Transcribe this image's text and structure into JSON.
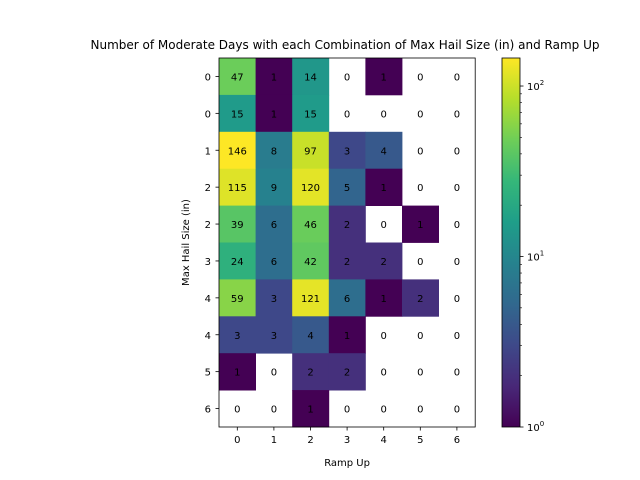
{
  "chart_data": {
    "type": "heatmap",
    "title": "Number of Moderate Days with each Combination of Max Hail Size (in) and Ramp Up",
    "xlabel": "Ramp Up",
    "ylabel": "Max Hail Size (in)",
    "x_tick_labels": [
      "0",
      "1",
      "2",
      "3",
      "4",
      "5",
      "6"
    ],
    "y_tick_labels": [
      "0",
      "0",
      "1",
      "2",
      "2",
      "3",
      "4",
      "4",
      "5",
      "6"
    ],
    "values": [
      [
        47,
        1,
        14,
        0,
        1,
        0,
        0
      ],
      [
        15,
        1,
        15,
        0,
        0,
        0,
        0
      ],
      [
        146,
        8,
        97,
        3,
        4,
        0,
        0
      ],
      [
        115,
        9,
        120,
        5,
        1,
        0,
        0
      ],
      [
        39,
        6,
        46,
        2,
        0,
        1,
        0
      ],
      [
        24,
        6,
        42,
        2,
        2,
        0,
        0
      ],
      [
        59,
        3,
        121,
        6,
        1,
        2,
        0
      ],
      [
        3,
        3,
        4,
        1,
        0,
        0,
        0
      ],
      [
        1,
        0,
        2,
        2,
        0,
        0,
        0
      ],
      [
        0,
        0,
        1,
        0,
        0,
        0,
        0
      ]
    ],
    "color_scale": "log",
    "colormap": "viridis",
    "colorbar": {
      "range": [
        1,
        146
      ],
      "tick_labels": [
        "10^0",
        "10^1",
        "10^2"
      ]
    }
  }
}
